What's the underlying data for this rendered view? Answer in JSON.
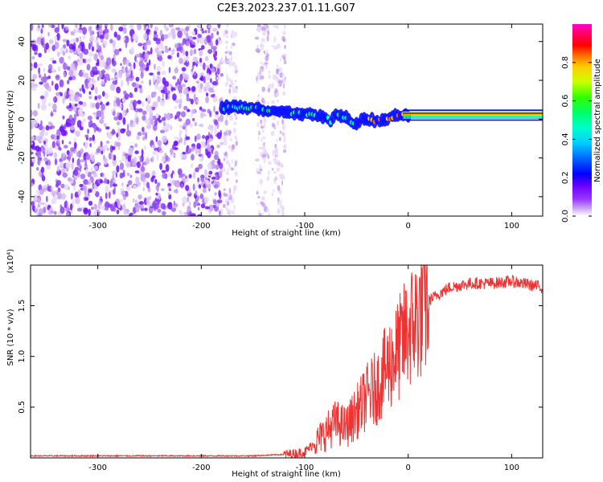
{
  "title": "C2E3.2023.237.01.11.G07",
  "colors": {
    "snr_line": "#ee3333",
    "colorbar_stops": [
      "#ffffff",
      "#c9a5f0",
      "#9933ff",
      "#6600ff",
      "#0000ff",
      "#0066ff",
      "#00ccff",
      "#00ffcc",
      "#00ff66",
      "#33ff00",
      "#ccff00",
      "#ffcc00",
      "#ff6600",
      "#ff0000",
      "#ff0066",
      "#ff00cc"
    ]
  },
  "chart_data": [
    {
      "type": "heatmap",
      "title": "",
      "xlabel": "Height of straight line (km)",
      "ylabel": "Frequency (Hz)",
      "xlim": [
        -365,
        130
      ],
      "ylim": [
        -50,
        49
      ],
      "x_ticks": [
        "-300",
        "-200",
        "-100",
        "0",
        "100"
      ],
      "y_ticks": [
        "-40",
        "-20",
        "0",
        "20",
        "40"
      ],
      "colorbar": {
        "label": "Normalized spectral amplitude",
        "range": [
          0,
          1
        ],
        "ticks": [
          "0.0",
          "0.2",
          "0.4",
          "0.6",
          "0.8"
        ]
      },
      "signal_trace": [
        [
          -180,
          6
        ],
        [
          -160,
          6
        ],
        [
          -140,
          5
        ],
        [
          -120,
          4
        ],
        [
          -110,
          3
        ],
        [
          -100,
          3
        ],
        [
          -90,
          2
        ],
        [
          -80,
          1
        ],
        [
          -75,
          -1
        ],
        [
          -70,
          3
        ],
        [
          -60,
          1
        ],
        [
          -55,
          -2
        ],
        [
          -50,
          -3
        ],
        [
          -45,
          0
        ],
        [
          -40,
          0
        ],
        [
          -30,
          -1
        ],
        [
          -20,
          0
        ],
        [
          -10,
          2
        ],
        [
          0,
          2
        ],
        [
          130,
          2
        ]
      ],
      "noise_region_x": [
        -365,
        -120
      ]
    },
    {
      "type": "line",
      "title": "",
      "xlabel": "Height of straight line (km)",
      "ylabel": "SNR (10 * v/v)",
      "y_scale_label": "(x10⁴)",
      "xlim": [
        -365,
        130
      ],
      "ylim": [
        0,
        1.9
      ],
      "x_ticks": [
        "-300",
        "-200",
        "-100",
        "0",
        "100"
      ],
      "y_ticks": [
        "0.5",
        "1.0",
        "1.5"
      ],
      "series": [
        {
          "x": [
            -365,
            -300,
            -200,
            -150,
            -130,
            -110,
            -100,
            -90,
            -80,
            -70,
            -60,
            -50,
            -40,
            -30,
            -20,
            -10,
            0,
            10,
            20,
            30,
            40,
            60,
            80,
            100,
            120,
            130
          ],
          "y": [
            0.02,
            0.02,
            0.02,
            0.02,
            0.03,
            0.04,
            0.06,
            0.15,
            0.25,
            0.35,
            0.3,
            0.45,
            0.6,
            0.7,
            0.9,
            1.05,
            1.25,
            1.4,
            1.55,
            1.62,
            1.68,
            1.72,
            1.72,
            1.74,
            1.7,
            1.68
          ]
        }
      ]
    }
  ]
}
